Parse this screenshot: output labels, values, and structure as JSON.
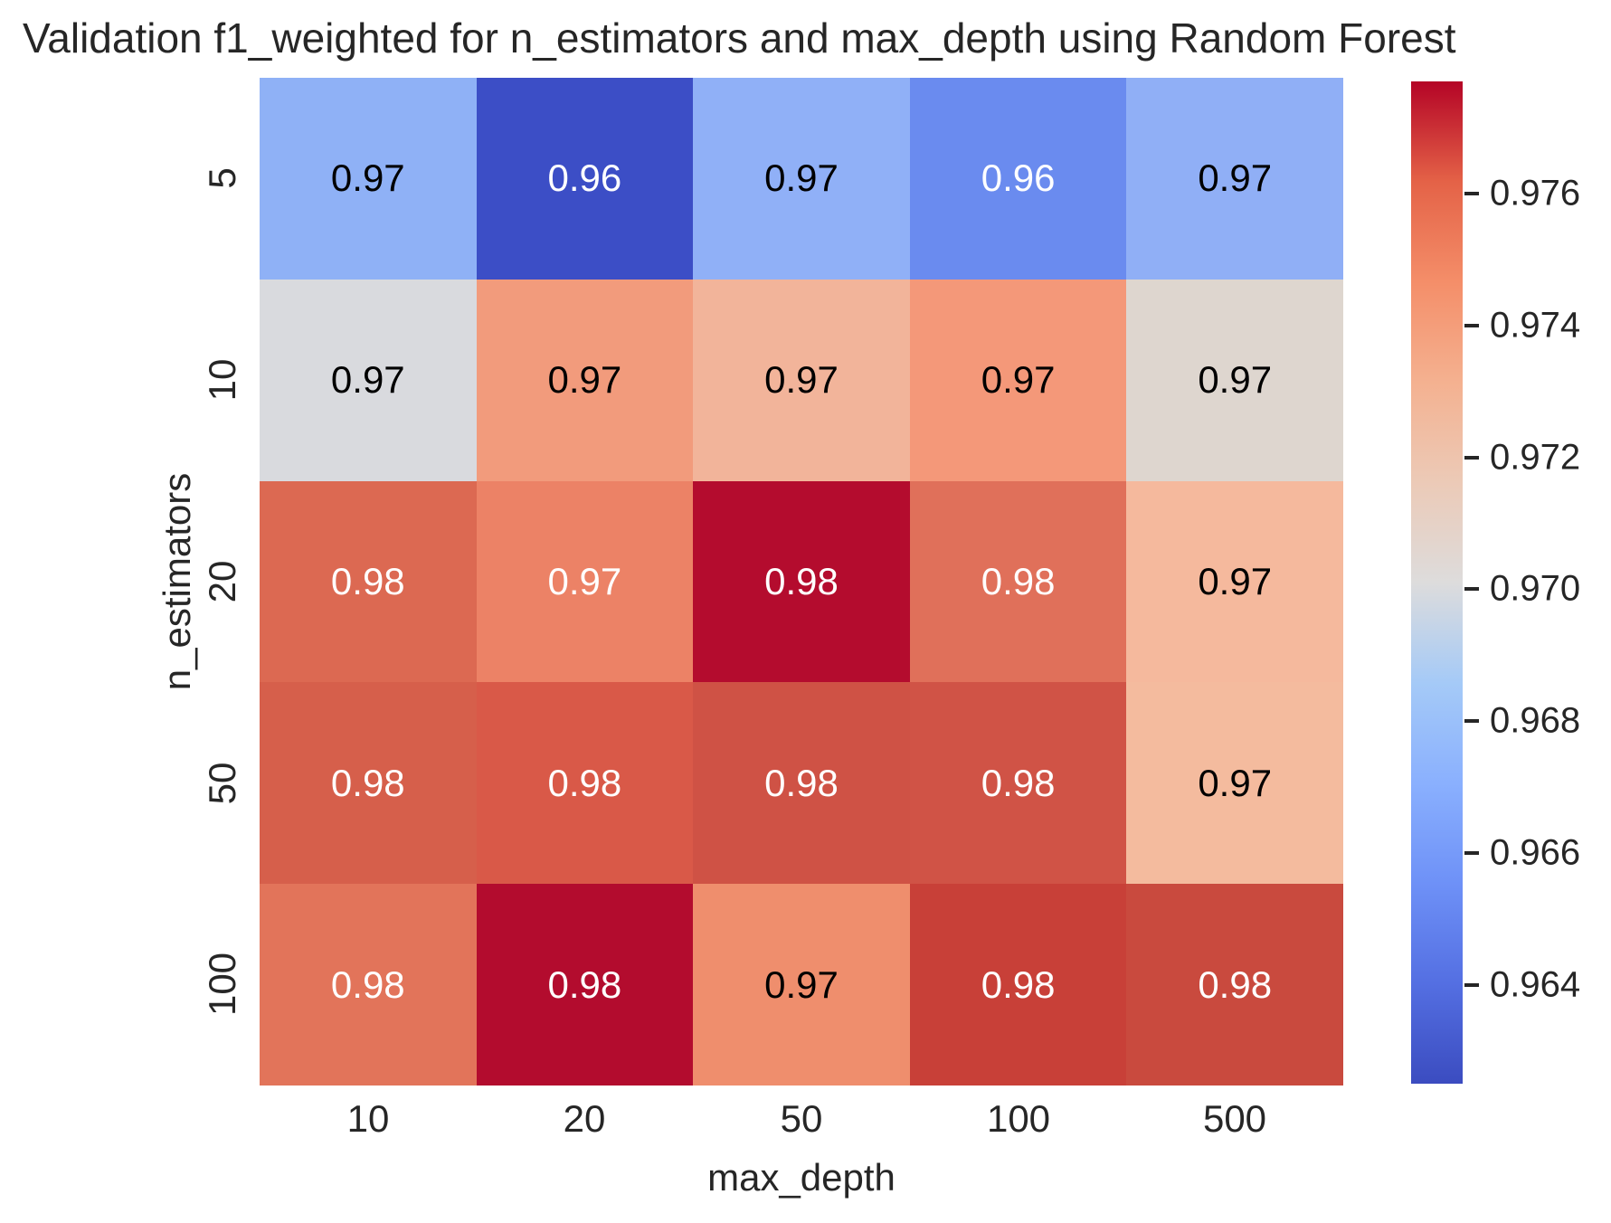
{
  "chart_data": {
    "type": "heatmap",
    "title": "Validation f1_weighted for n_estimators and max_depth using Random Forest",
    "xlabel": "max_depth",
    "ylabel": "n_estimators",
    "x_categories": [
      "10",
      "20",
      "50",
      "100",
      "500"
    ],
    "y_categories": [
      "5",
      "10",
      "20",
      "50",
      "100"
    ],
    "annotations": [
      [
        "0.97",
        "0.96",
        "0.97",
        "0.96",
        "0.97"
      ],
      [
        "0.97",
        "0.97",
        "0.97",
        "0.97",
        "0.97"
      ],
      [
        "0.98",
        "0.97",
        "0.98",
        "0.98",
        "0.97"
      ],
      [
        "0.98",
        "0.98",
        "0.98",
        "0.98",
        "0.97"
      ],
      [
        "0.98",
        "0.98",
        "0.97",
        "0.98",
        "0.98"
      ]
    ],
    "cell_colors": [
      [
        "#8fb1f6",
        "#3c4ec6",
        "#90b0f7",
        "#6a8bef",
        "#90aff6"
      ],
      [
        "#d9dade",
        "#f29b7c",
        "#f2b49a",
        "#f49879",
        "#ded6cf"
      ],
      [
        "#dc6952",
        "#ec8266",
        "#b40c2e",
        "#e0705a",
        "#f5b99d"
      ],
      [
        "#d65f4b",
        "#d95948",
        "#cf5245",
        "#d05346",
        "#f4bb9e"
      ],
      [
        "#e2745a",
        "#b30c2e",
        "#ef8e6d",
        "#c84038",
        "#c94a3e"
      ]
    ],
    "annotation_text_colors": [
      [
        "#000000",
        "#ffffff",
        "#000000",
        "#ffffff",
        "#000000"
      ],
      [
        "#000000",
        "#000000",
        "#000000",
        "#000000",
        "#000000"
      ],
      [
        "#ffffff",
        "#ffffff",
        "#ffffff",
        "#ffffff",
        "#000000"
      ],
      [
        "#ffffff",
        "#ffffff",
        "#ffffff",
        "#ffffff",
        "#000000"
      ],
      [
        "#ffffff",
        "#ffffff",
        "#000000",
        "#ffffff",
        "#ffffff"
      ]
    ],
    "colorbar": {
      "tick_labels": [
        "0.976",
        "0.974",
        "0.972",
        "0.970",
        "0.968",
        "0.966",
        "0.964"
      ],
      "tick_values": [
        0.976,
        0.974,
        0.972,
        0.97,
        0.968,
        0.966,
        0.964
      ],
      "vmin": 0.9625,
      "vmax": 0.9777,
      "gradient_top_to_bottom": [
        "#b40426",
        "#e46247",
        "#f48e69",
        "#f4b190",
        "#eccab7",
        "#dddcdc",
        "#a5caf7",
        "#8ab0fe",
        "#6e91f7",
        "#546fe2",
        "#3b4cc0"
      ]
    },
    "colors": {
      "text": "#262626",
      "annot_dark": "#000000",
      "annot_light": "#ffffff",
      "background": "#ffffff"
    },
    "legend_position": "right-colorbar",
    "grid": false
  }
}
